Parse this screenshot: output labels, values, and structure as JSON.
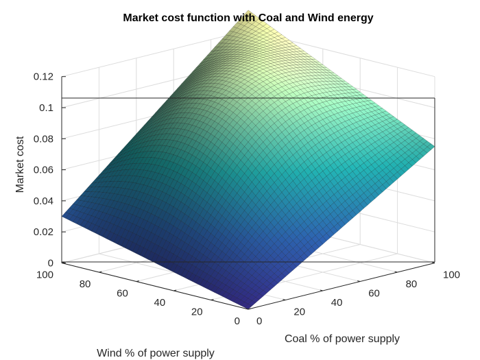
{
  "chart_data": {
    "type": "surface",
    "title": "Market cost function with Coal and Wind energy",
    "xlabel": "Coal % of power supply",
    "ylabel": "Wind % of power supply",
    "zlabel": "Market cost",
    "xlim": [
      0,
      100
    ],
    "ylim": [
      0,
      100
    ],
    "zlim": [
      0,
      0.12
    ],
    "x_ticks": [
      "0",
      "20",
      "40",
      "60",
      "80",
      "100"
    ],
    "y_ticks": [
      "0",
      "20",
      "40",
      "60",
      "80",
      "100"
    ],
    "z_ticks": [
      "0",
      "0.02",
      "0.04",
      "0.06",
      "0.08",
      "0.1",
      "0.12"
    ],
    "grid": true,
    "colormap": [
      "#352a87",
      "#2b5fa8",
      "#1fa5a5",
      "#8fcfa0",
      "#f4e99b"
    ],
    "corner_values": [
      {
        "coal": 0,
        "wind": 0,
        "cost": 0.0
      },
      {
        "coal": 100,
        "wind": 0,
        "cost": 0.075
      },
      {
        "coal": 0,
        "wind": 100,
        "cost": 0.03
      },
      {
        "coal": 100,
        "wind": 100,
        "cost": 0.133
      }
    ]
  }
}
